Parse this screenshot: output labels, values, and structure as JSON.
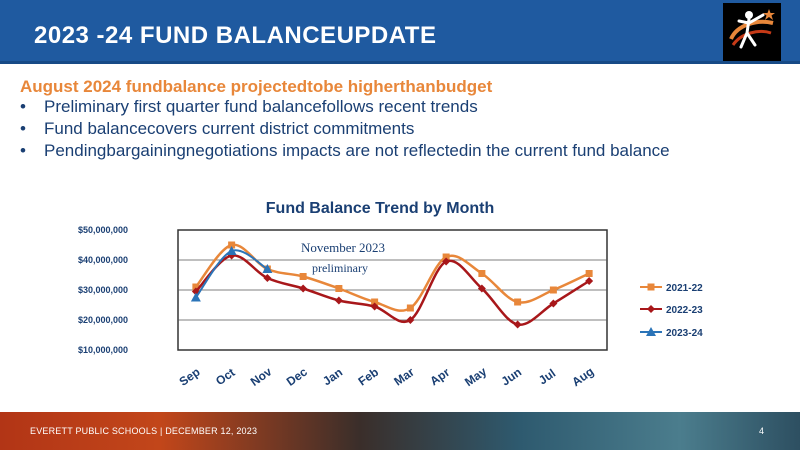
{
  "header": {
    "title": "2023   -24  FUND     BALANCEUPDATE"
  },
  "subtitle": "August    2024   fundbalance       projectedtobe       higherthanbudget",
  "bullets": [
    "Preliminary  first quarter fund balancefollows  recent trends",
    "Fund  balancecovers  current district commitments",
    "Pendingbargainingnegotiations  impacts are not reflectedin the current fund balance"
  ],
  "chart_data": {
    "type": "line",
    "title": "Fund   Balance     Trend    by   Month",
    "categories": [
      "Sep",
      "Oct",
      "Nov",
      "Dec",
      "Jan",
      "Feb",
      "Mar",
      "Apr",
      "May",
      "Jun",
      "Jul",
      "Aug"
    ],
    "series": [
      {
        "name": "2021-22",
        "color": "#e8873a",
        "marker": "square",
        "values": [
          31000000,
          45000000,
          37000000,
          34500000,
          30500000,
          26000000,
          24000000,
          41000000,
          35500000,
          26000000,
          30000000,
          35500000
        ]
      },
      {
        "name": "2022-23",
        "color": "#a8171a",
        "marker": "diamond",
        "values": [
          29500000,
          41500000,
          34000000,
          30500000,
          26500000,
          24500000,
          20000000,
          39500000,
          30500000,
          18500000,
          25500000,
          33000000
        ]
      },
      {
        "name": "2023-24",
        "color": "#2b74b8",
        "marker": "triangle",
        "values": [
          27500000,
          43000000,
          37000000,
          null,
          null,
          null,
          null,
          null,
          null,
          null,
          null,
          null
        ]
      }
    ],
    "ylim": [
      10000000,
      50000000
    ],
    "yticks": [
      "$50,000,000",
      "$40,000,000",
      "$30,000,000",
      "$20,000,000",
      "$10,000,000"
    ],
    "gridlines": [
      20000000,
      30000000,
      40000000
    ],
    "legend_position": "right",
    "annotation": {
      "line1": "November 2023",
      "line2": "preliminary"
    }
  },
  "footer": {
    "text": "EVERETT PUBLIC SCHOOLS  |  DECEMBER 12, 2023",
    "page_number": "4"
  }
}
